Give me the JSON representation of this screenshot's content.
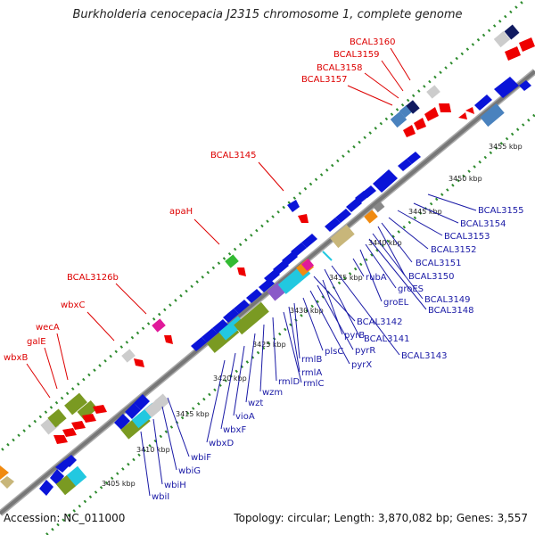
{
  "title": "Burkholderia cenocepacia J2315 chromosome 1, complete genome",
  "footer": {
    "accession": "Accession: NC_011000",
    "summary": "Topology: circular; Length: 3,870,082 bp; Genes: 3,557"
  },
  "colors": {
    "backbone": "#888888",
    "ticks": "#2e8b2e",
    "label_top": "#dd0000",
    "label_bottom": "#1a1aa6",
    "gene_red": "#ee0000",
    "gene_blue": "#0a14d8",
    "gene_olive": "#7a9a22",
    "gene_grey": "#cccccc",
    "gene_cyan": "#22c8e0",
    "gene_navy": "#101a60",
    "gene_steel": "#4a82be",
    "gene_tan": "#c8b67a",
    "gene_green": "#33bb33",
    "gene_magenta": "#e01a9a",
    "gene_orange": "#f08a10",
    "gene_purple": "#8a5ac8"
  },
  "kbp_labels": [
    "3405 kbp",
    "3410 kbp",
    "3415 kbp",
    "3420 kbp",
    "3425 kbp",
    "3430 kbp",
    "3435 kbp",
    "3440 kbp",
    "3445 kbp",
    "3450 kbp",
    "3455 kbp"
  ],
  "top_labels": [
    "BCAL3160",
    "BCAL3159",
    "BCAL3158",
    "BCAL3157",
    "BCAL3145",
    "apaH",
    "BCAL3126b",
    "wbxC",
    "wecA",
    "galE",
    "wbxB"
  ],
  "bottom_labels": [
    "BCAL3155",
    "BCAL3154",
    "BCAL3153",
    "BCAL3152",
    "BCAL3151",
    "BCAL3150",
    "BCAL3149",
    "BCAL3148",
    "groES",
    "groEL",
    "rubA",
    "BCAL3142",
    "BCAL3141",
    "BCAL3143",
    "pyrB",
    "pyrR",
    "pyrX",
    "plsC",
    "rmlB",
    "rmlA",
    "rmlC",
    "rmlD",
    "wzm",
    "wzt",
    "vioA",
    "wbxF",
    "wbxD",
    "wbiF",
    "wbiG",
    "wbiH",
    "wbiI"
  ]
}
